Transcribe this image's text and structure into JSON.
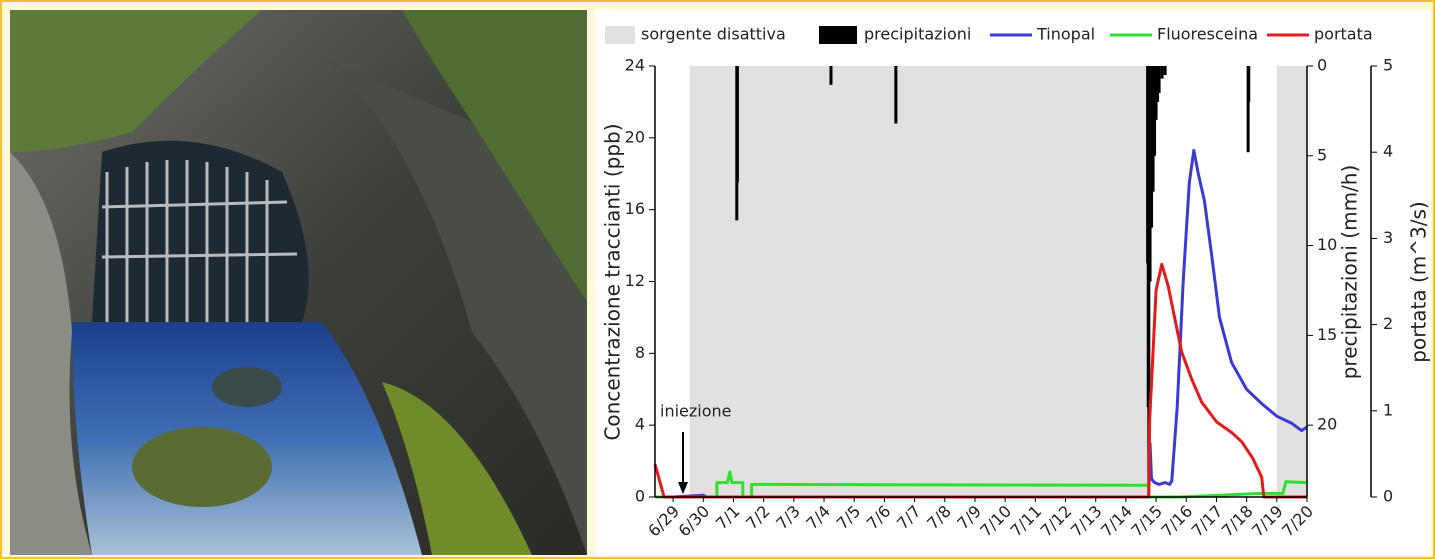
{
  "chart_data": {
    "type": "line",
    "y_label": "Concentrazione traccianti (ppb)",
    "y2_label": "precipitazioni (mm/h)",
    "y3_label": "portata (m^3/s)",
    "annotation": "iniezione",
    "legend": "top",
    "xlim": [
      -0.6,
      21
    ],
    "xticks": [
      {
        "value": 0,
        "label": "6/29"
      },
      {
        "value": 1,
        "label": "6/30"
      },
      {
        "value": 2,
        "label": "7/1"
      },
      {
        "value": 3,
        "label": "7/2"
      },
      {
        "value": 4,
        "label": "7/3"
      },
      {
        "value": 5,
        "label": "7/4"
      },
      {
        "value": 6,
        "label": "7/5"
      },
      {
        "value": 7,
        "label": "7/6"
      },
      {
        "value": 8,
        "label": "7/7"
      },
      {
        "value": 9,
        "label": "7/8"
      },
      {
        "value": 10,
        "label": "7/9"
      },
      {
        "value": 11,
        "label": "7/10"
      },
      {
        "value": 12,
        "label": "7/11"
      },
      {
        "value": 13,
        "label": "7/12"
      },
      {
        "value": 14,
        "label": "7/13"
      },
      {
        "value": 15,
        "label": "7/14"
      },
      {
        "value": 16,
        "label": "7/15"
      },
      {
        "value": 17,
        "label": "7/16"
      },
      {
        "value": 18,
        "label": "7/17"
      },
      {
        "value": 19,
        "label": "7/18"
      },
      {
        "value": 20,
        "label": "7/19"
      },
      {
        "value": 21,
        "label": "7/20"
      }
    ],
    "ylim": [
      0,
      24
    ],
    "yticks": [
      0,
      4,
      8,
      12,
      16,
      20,
      24
    ],
    "y2lim": [
      0,
      24
    ],
    "y2ticks": [
      0,
      5,
      10,
      15,
      20
    ],
    "y2_inverted": true,
    "y3lim": [
      0,
      5
    ],
    "y3ticks": [
      0,
      1,
      2,
      3,
      4,
      5
    ],
    "series": [
      {
        "name": "sorgente disattiva",
        "kind": "span",
        "color": "#e1e1e1",
        "spans": [
          [
            0.55,
            15.76
          ],
          [
            20.0,
            21.0
          ]
        ]
      },
      {
        "name": "precipitazioni",
        "kind": "bar",
        "color": "#000000",
        "axis": "y2",
        "x": [
          2.11,
          2.13,
          5.23,
          7.38,
          15.72,
          15.74,
          15.76,
          15.8,
          15.85,
          15.9,
          15.95,
          16.0,
          16.05,
          16.1,
          16.2,
          16.3,
          19.05,
          19.07
        ],
        "values": [
          8.6,
          6.5,
          1.05,
          3.2,
          11,
          19,
          24,
          12,
          9,
          7,
          5,
          3,
          2,
          1.5,
          0.7,
          0.5,
          4.8,
          2
        ]
      },
      {
        "name": "Tinopal",
        "kind": "line",
        "color": "#3a3ad8",
        "x": [
          0,
          1.0,
          1.1,
          15.76,
          15.8,
          15.85,
          15.95,
          16.1,
          16.3,
          16.45,
          16.52,
          16.7,
          16.9,
          17.1,
          17.25,
          17.4,
          17.6,
          17.84,
          18.1,
          18.5,
          19.0,
          19.5,
          20.0,
          20.5,
          20.82,
          21.0
        ],
        "values": [
          0,
          0.1,
          0,
          0,
          3.0,
          1.0,
          0.8,
          0.7,
          0.8,
          0.7,
          0.9,
          5,
          12,
          17.5,
          19.3,
          18,
          16.5,
          13.5,
          10,
          7.5,
          6,
          5.2,
          4.5,
          4.1,
          3.7,
          3.9
        ]
      },
      {
        "name": "Fluoresceina",
        "kind": "line",
        "color": "#2ee02e",
        "x": [
          -0.6,
          1.45,
          1.45,
          1.8,
          1.88,
          1.95,
          2.31,
          2.31,
          2.6,
          2.6,
          15.76,
          15.76,
          16.8,
          19.5,
          20.2,
          20.3,
          21.0
        ],
        "values": [
          0,
          0,
          0.8,
          0.8,
          1.4,
          0.8,
          0.8,
          0,
          0,
          0.7,
          0.65,
          0,
          0,
          0.2,
          0.2,
          0.85,
          0.8
        ]
      },
      {
        "name": "portata",
        "kind": "line",
        "color": "#e41b1b",
        "axis": "y3",
        "x": [
          -0.6,
          -0.3,
          15.76,
          15.79,
          16.0,
          16.19,
          16.4,
          16.85,
          17.2,
          17.51,
          18.01,
          18.5,
          18.84,
          19.2,
          19.5,
          19.57,
          21.0
        ],
        "values": [
          0.38,
          0,
          0,
          0.9,
          2.4,
          2.7,
          2.45,
          1.68,
          1.35,
          1.1,
          0.87,
          0.75,
          0.64,
          0.45,
          0.23,
          0,
          0
        ]
      }
    ]
  }
}
